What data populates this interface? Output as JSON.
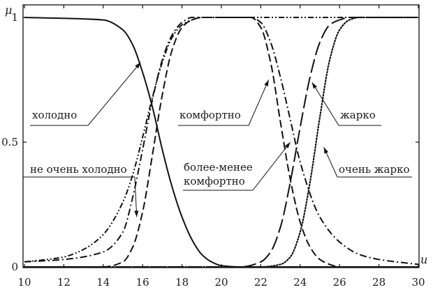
{
  "chart_data": {
    "type": "line",
    "title": "",
    "xlabel": "u",
    "ylabel": "μ",
    "xlim": [
      10,
      30
    ],
    "ylim": [
      0,
      1
    ],
    "xticks": [
      10,
      12,
      14,
      16,
      18,
      20,
      22,
      24,
      26,
      28,
      30
    ],
    "yticks": [
      0,
      0.5,
      1
    ],
    "ytick_labels": [
      "0",
      "0.5",
      "1"
    ],
    "grid": false,
    "series": [
      {
        "name": "холодно",
        "style": "solid",
        "x": [
          10,
          14,
          15,
          15.5,
          16,
          16.5,
          17,
          17.5,
          18,
          18.5,
          19,
          19.5,
          20,
          21,
          22,
          30
        ],
        "y": [
          1,
          0.99,
          0.95,
          0.89,
          0.78,
          0.64,
          0.47,
          0.32,
          0.2,
          0.11,
          0.05,
          0.02,
          0.005,
          0,
          0,
          0
        ]
      },
      {
        "name": "не очень холодно",
        "style": "dashdotdot",
        "x": [
          10,
          12,
          13,
          14,
          15,
          15.5,
          16,
          16.5,
          17,
          17.5,
          18,
          18.5,
          19,
          30
        ],
        "y": [
          0.02,
          0.04,
          0.07,
          0.13,
          0.26,
          0.37,
          0.52,
          0.68,
          0.82,
          0.92,
          0.97,
          0.99,
          1,
          1
        ]
      },
      {
        "name": "комфортно",
        "style": "dashed",
        "x": [
          10,
          14,
          15,
          15.5,
          16,
          16.5,
          17,
          17.5,
          18,
          18.5,
          19,
          21.5,
          22,
          22.5,
          23,
          23.5,
          24,
          24.5,
          25,
          25.5,
          26,
          30
        ],
        "y": [
          0,
          0,
          0.02,
          0.08,
          0.22,
          0.45,
          0.69,
          0.87,
          0.96,
          0.99,
          1,
          1,
          0.96,
          0.82,
          0.58,
          0.35,
          0.18,
          0.08,
          0.03,
          0.01,
          0,
          0
        ]
      },
      {
        "name": "более-менее комфортно",
        "style": "dashdot",
        "x": [
          10,
          12,
          14,
          15,
          15.5,
          16,
          16.5,
          17,
          17.5,
          18,
          18.5,
          19,
          21.5,
          22,
          22.5,
          23,
          23.5,
          24,
          25,
          26,
          27,
          28,
          30
        ],
        "y": [
          0.02,
          0.03,
          0.06,
          0.14,
          0.28,
          0.47,
          0.67,
          0.83,
          0.93,
          0.98,
          1,
          1,
          1,
          0.98,
          0.9,
          0.76,
          0.59,
          0.42,
          0.2,
          0.1,
          0.05,
          0.03,
          0.01
        ]
      },
      {
        "name": "жарко",
        "style": "longdash",
        "x": [
          10,
          21,
          22,
          22.5,
          23,
          23.5,
          24,
          24.5,
          25,
          25.5,
          26,
          26.5,
          27,
          30
        ],
        "y": [
          0,
          0,
          0.02,
          0.06,
          0.16,
          0.34,
          0.56,
          0.76,
          0.9,
          0.97,
          0.99,
          1,
          1,
          1
        ]
      },
      {
        "name": "очень жарко",
        "style": "dotted",
        "x": [
          10,
          22,
          23,
          23.5,
          24,
          24.5,
          25,
          25.5,
          26,
          26.5,
          27,
          30
        ],
        "y": [
          0,
          0,
          0.01,
          0.04,
          0.14,
          0.34,
          0.6,
          0.83,
          0.95,
          0.99,
          1,
          1
        ]
      }
    ],
    "annotations": [
      {
        "lines": [
          "холодно"
        ],
        "target_series": "холодно",
        "target": [
          15.9,
          0.82
        ]
      },
      {
        "lines": [
          "не очень холодно"
        ],
        "target_series": "не очень холодно",
        "target": [
          15.7,
          0.2
        ]
      },
      {
        "lines": [
          "комфортно"
        ],
        "target_series": "комфортно",
        "target": [
          22.4,
          0.75
        ]
      },
      {
        "lines": [
          "более-менее",
          "комфортно"
        ],
        "target_series": "более-менее комфортно",
        "target": [
          23.5,
          0.5
        ]
      },
      {
        "lines": [
          "жарко"
        ],
        "target_series": "жарко",
        "target": [
          24.6,
          0.74
        ]
      },
      {
        "lines": [
          "очень жарко"
        ],
        "target_series": "очень жарко",
        "target": [
          25.2,
          0.48
        ]
      }
    ]
  }
}
